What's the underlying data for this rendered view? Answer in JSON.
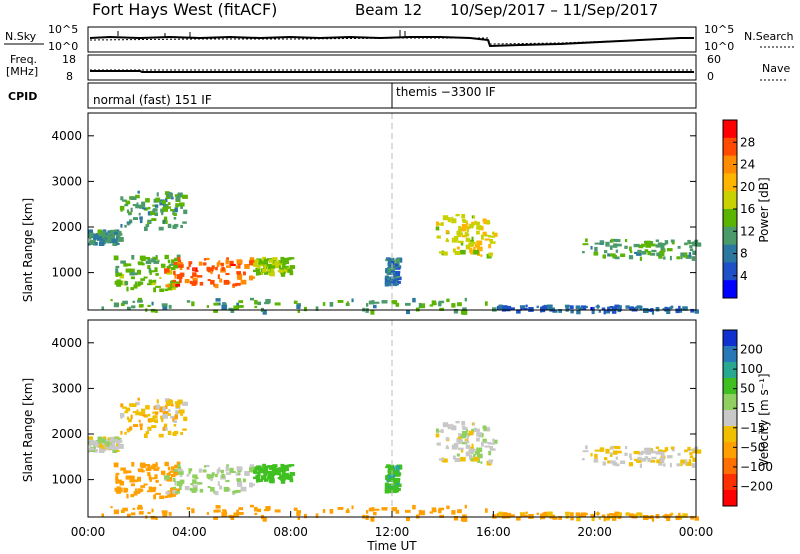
{
  "header": {
    "station": "Fort Hays West (fitACF)",
    "beam": "Beam 12",
    "date_range": "10/Sep/2017 – 11/Sep/2017"
  },
  "top_panels": {
    "nsky_label": "N.Sky",
    "nsearch_label": "N.Search",
    "freq_label_1": "Freq.",
    "freq_label_2": "[MHz]",
    "nave_label": "Nave",
    "cpid_label": "CPID",
    "noise_ticks": [
      "10^5",
      "10^0"
    ],
    "freq_ticks": [
      "18",
      "8"
    ],
    "nave_ticks": [
      "60",
      "0"
    ],
    "cpid_segments": [
      {
        "start_hour": 0,
        "label": "normal (fast) 151 IF"
      },
      {
        "start_hour": 12,
        "label": "themis −3300 IF"
      }
    ]
  },
  "power_colorbar": {
    "title": "Power [dB]",
    "ticks": [
      "28",
      "24",
      "20",
      "16",
      "12",
      "8",
      "4"
    ],
    "colors": [
      "#ff0000",
      "#ff4a00",
      "#ff8c00",
      "#ffb400",
      "#c8d200",
      "#5ab400",
      "#4a9a6a",
      "#2a78a0",
      "#1e50c8",
      "#0000ff"
    ]
  },
  "velocity_colorbar": {
    "title": "Velocity [m s⁻¹]",
    "ticks": [
      "200",
      "100",
      "50",
      "15",
      "−15",
      "−50",
      "−100",
      "−200"
    ],
    "colors": [
      "#1030d0",
      "#2878b8",
      "#28a890",
      "#40c020",
      "#90d060",
      "#c8c8c8",
      "#f0c000",
      "#ffa000",
      "#ff7000",
      "#ff3000",
      "#ff0000"
    ]
  },
  "chart_data": [
    {
      "type": "heatmap",
      "name": "power",
      "xlabel": "",
      "ylabel": "Slant Range [km]",
      "xlim": [
        0,
        24
      ],
      "ylim": [
        180,
        4500
      ],
      "yticks": [
        1000,
        2000,
        3000,
        4000
      ],
      "ytick_labels": [
        "1000",
        "2000",
        "3000",
        "4000"
      ],
      "value_label": "Power [dB]",
      "echo_regions": [
        {
          "t0": 0.0,
          "t1": 1.2,
          "r0": 1650,
          "r1": 1950,
          "power": 10
        },
        {
          "t0": 1.2,
          "t1": 3.8,
          "r0": 2000,
          "r1": 2800,
          "power": 12
        },
        {
          "t0": 1.0,
          "t1": 3.5,
          "r0": 650,
          "r1": 1400,
          "power": 14
        },
        {
          "t0": 3.0,
          "t1": 6.5,
          "r0": 700,
          "r1": 1350,
          "power": 26
        },
        {
          "t0": 6.5,
          "t1": 8.0,
          "r0": 1000,
          "r1": 1350,
          "power": 16
        },
        {
          "t0": 0.5,
          "t1": 16.0,
          "r0": 180,
          "r1": 450,
          "power": 12
        },
        {
          "t0": 11.7,
          "t1": 12.2,
          "r0": 750,
          "r1": 1350,
          "power": 8
        },
        {
          "t0": 13.7,
          "t1": 16.0,
          "r0": 1400,
          "r1": 2300,
          "power": 18
        },
        {
          "t0": 19.5,
          "t1": 24.0,
          "r0": 1350,
          "r1": 1750,
          "power": 12
        },
        {
          "t0": 16.0,
          "t1": 24.0,
          "r0": 180,
          "r1": 300,
          "power": 6
        }
      ]
    },
    {
      "type": "heatmap",
      "name": "velocity",
      "xlabel": "Time UT",
      "ylabel": "Slant Range [km]",
      "xlim": [
        0,
        24
      ],
      "ylim": [
        180,
        4500
      ],
      "xticks": [
        0,
        4,
        8,
        12,
        16,
        20,
        24
      ],
      "xtick_labels": [
        "00:00",
        "04:00",
        "08:00",
        "12:00",
        "16:00",
        "20:00",
        "00:00"
      ],
      "yticks": [
        1000,
        2000,
        3000,
        4000
      ],
      "ytick_labels": [
        "1000",
        "2000",
        "3000",
        "4000"
      ],
      "value_label": "Velocity [m s⁻¹]",
      "echo_regions": [
        {
          "t0": 0.0,
          "t1": 1.2,
          "r0": 1650,
          "r1": 1950,
          "velocity": 0
        },
        {
          "t0": 1.2,
          "t1": 3.8,
          "r0": 2000,
          "r1": 2800,
          "velocity": -10
        },
        {
          "t0": 1.0,
          "t1": 3.5,
          "r0": 650,
          "r1": 1400,
          "velocity": -30
        },
        {
          "t0": 3.0,
          "t1": 6.5,
          "r0": 700,
          "r1": 1350,
          "velocity": 5
        },
        {
          "t0": 6.5,
          "t1": 8.0,
          "r0": 1000,
          "r1": 1350,
          "velocity": 40
        },
        {
          "t0": 0.5,
          "t1": 16.0,
          "r0": 180,
          "r1": 450,
          "velocity": -40
        },
        {
          "t0": 11.7,
          "t1": 12.2,
          "r0": 750,
          "r1": 1350,
          "velocity": 45
        },
        {
          "t0": 13.7,
          "t1": 16.0,
          "r0": 1400,
          "r1": 2300,
          "velocity": 0
        },
        {
          "t0": 19.5,
          "t1": 24.0,
          "r0": 1350,
          "r1": 1750,
          "velocity": -5
        },
        {
          "t0": 16.0,
          "t1": 24.0,
          "r0": 180,
          "r1": 300,
          "velocity": -20
        }
      ]
    }
  ]
}
